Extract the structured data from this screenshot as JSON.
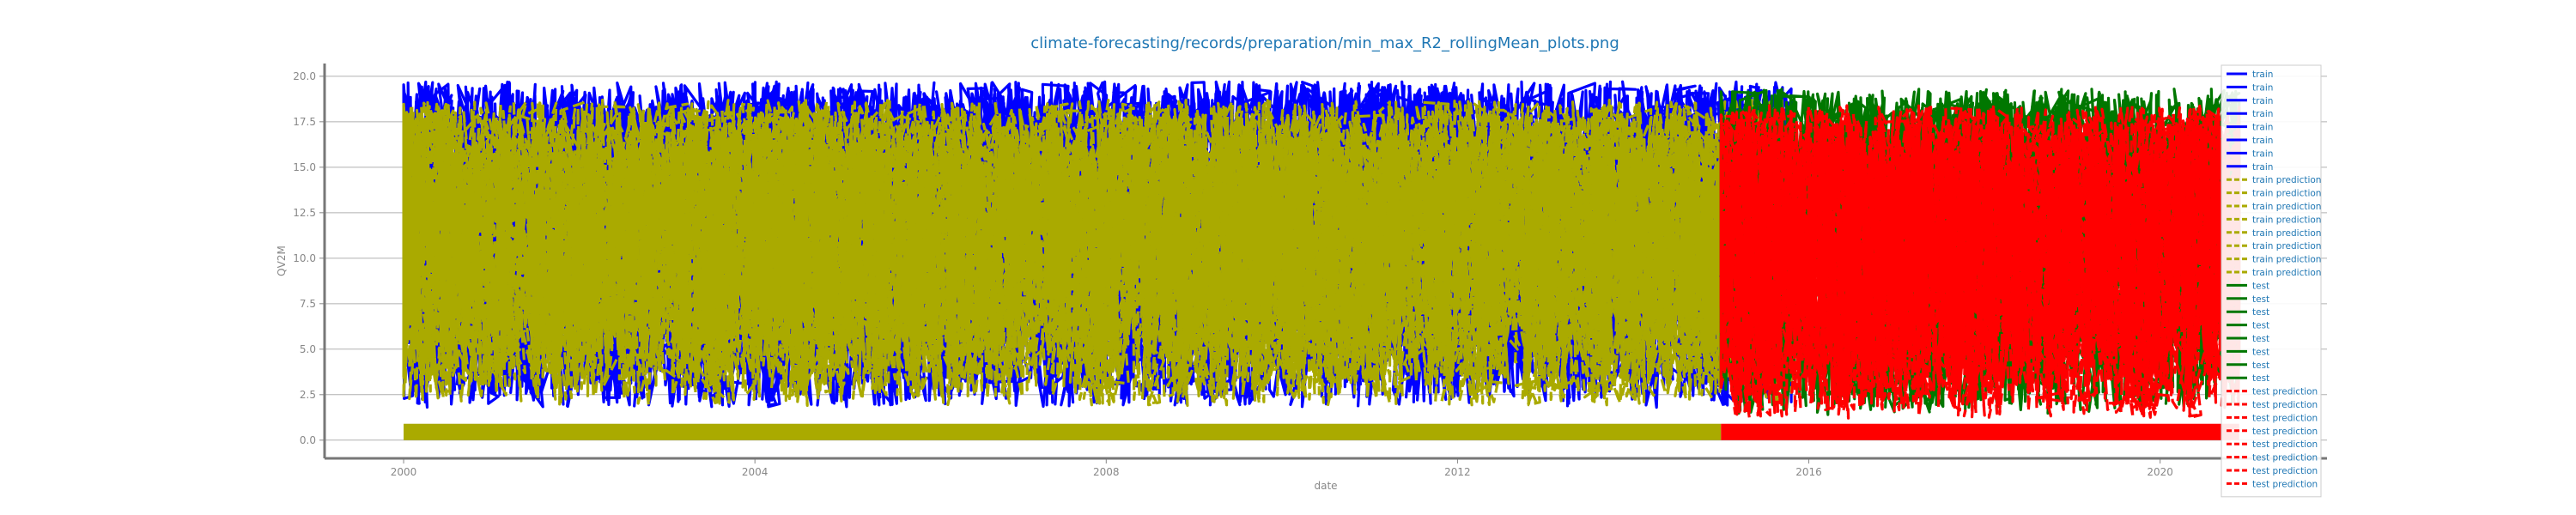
{
  "chart_data": {
    "type": "line",
    "title": "climate-forecasting/records/preparation/min_max_R2_rollingMean_plots.png",
    "xlabel": "date",
    "ylabel": "QV2M",
    "xlim": [
      1999.1,
      2021.9
    ],
    "ylim": [
      -1.0,
      20.7
    ],
    "x_ticks": [
      "2000",
      "2004",
      "2008",
      "2012",
      "2016",
      "2020"
    ],
    "x_tick_values": [
      2000,
      2004,
      2008,
      2012,
      2016,
      2020
    ],
    "y_ticks": [
      "0.0",
      "2.5",
      "5.0",
      "7.5",
      "10.0",
      "12.5",
      "15.0",
      "17.5",
      "20.0"
    ],
    "y_tick_values": [
      0.0,
      2.5,
      5.0,
      7.5,
      10.0,
      12.5,
      15.0,
      17.5,
      20.0
    ],
    "grid": true,
    "legend_position": "right-top",
    "colors": {
      "train": "#0000ff",
      "train_prediction": "#aaaa00",
      "test": "#007700",
      "test_prediction": "#ff0000",
      "title": "#1f77b4",
      "legend_text": "#1f77b4"
    },
    "series_ranges": [
      {
        "name": "train",
        "x_start": 2000.0,
        "x_end": 2015.8,
        "y_min": 1.8,
        "y_max": 19.7
      },
      {
        "name": "train prediction",
        "x_start": 2000.0,
        "x_end": 2015.8,
        "y_min": 1.9,
        "y_max": 18.7
      },
      {
        "name": "test",
        "x_start": 2015.0,
        "x_end": 2020.9,
        "y_min": 1.4,
        "y_max": 19.3
      },
      {
        "name": "test prediction",
        "x_start": 2015.0,
        "x_end": 2020.9,
        "y_min": 1.2,
        "y_max": 18.4
      }
    ],
    "band_ranges": [
      {
        "name": "train",
        "x_start": 2000.0,
        "x_end": 2015.0,
        "y_min": 0.0,
        "y_max": 0.9
      },
      {
        "name": "test",
        "x_start": 2015.0,
        "x_end": 2020.9,
        "y_min": 0.0,
        "y_max": 0.9
      }
    ],
    "legend": [
      "train",
      "train",
      "train",
      "train",
      "train",
      "train",
      "train",
      "train",
      "train prediction",
      "train prediction",
      "train prediction",
      "train prediction",
      "train prediction",
      "train prediction",
      "train prediction",
      "train prediction",
      "test",
      "test",
      "test",
      "test",
      "test",
      "test",
      "test",
      "test",
      "test prediction",
      "test prediction",
      "test prediction",
      "test prediction",
      "test prediction",
      "test prediction",
      "test prediction",
      "test prediction"
    ]
  }
}
